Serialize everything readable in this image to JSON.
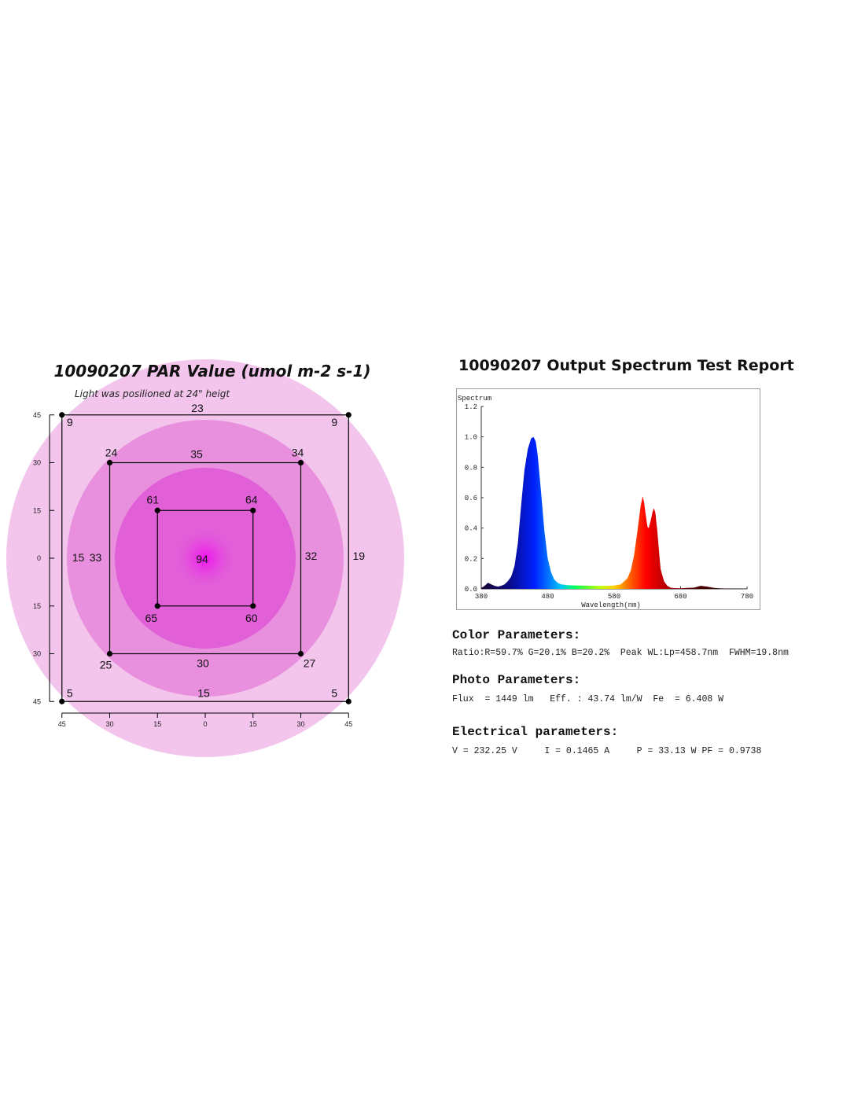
{
  "par": {
    "title": "10090207 PAR Value (umol m-2 s-1)",
    "subtitle": "Light was posilioned at 24\" heigt",
    "colors": {
      "outer": "#f3c4ec",
      "middle": "#e890de",
      "inner": "#e160d8",
      "center": "#f010f0"
    }
  },
  "chart_data": [
    {
      "type": "heatmap",
      "title": "10090207 PAR Value (umol m-2 s-1)",
      "subtitle": "Light was posilioned at 24\" heigt",
      "x_ticks": [
        "45",
        "30",
        "15",
        "0",
        "15",
        "30",
        "45"
      ],
      "y_ticks": [
        "45",
        "30",
        "15",
        "0",
        "15",
        "30",
        "45"
      ],
      "points": [
        {
          "x": -45,
          "y": 45,
          "value": 9
        },
        {
          "x": 0,
          "y": 45,
          "value": 23
        },
        {
          "x": 45,
          "y": 45,
          "value": 9
        },
        {
          "x": -30,
          "y": 30,
          "value": 24
        },
        {
          "x": 0,
          "y": 30,
          "value": 35
        },
        {
          "x": 30,
          "y": 30,
          "value": 34
        },
        {
          "x": -15,
          "y": 15,
          "value": 61
        },
        {
          "x": 15,
          "y": 15,
          "value": 64
        },
        {
          "x": -45,
          "y": 0,
          "value": 15
        },
        {
          "x": -30,
          "y": 0,
          "value": 33
        },
        {
          "x": 0,
          "y": 0,
          "value": 94
        },
        {
          "x": 30,
          "y": 0,
          "value": 32
        },
        {
          "x": 45,
          "y": 0,
          "value": 19
        },
        {
          "x": -15,
          "y": -15,
          "value": 65
        },
        {
          "x": 15,
          "y": -15,
          "value": 60
        },
        {
          "x": -30,
          "y": -30,
          "value": 25
        },
        {
          "x": 0,
          "y": -30,
          "value": 30
        },
        {
          "x": 30,
          "y": -30,
          "value": 27
        },
        {
          "x": -45,
          "y": -45,
          "value": 5
        },
        {
          "x": 0,
          "y": -45,
          "value": 15
        },
        {
          "x": 45,
          "y": -45,
          "value": 5
        }
      ]
    },
    {
      "type": "area",
      "title": "10090207 Output Spectrum Test Report",
      "ylabel": "Spectrum",
      "xlabel": "Wavelength(nm)",
      "xlim": [
        380,
        780
      ],
      "ylim": [
        0,
        1.2
      ],
      "x_ticks": [
        380,
        480,
        580,
        680,
        780
      ],
      "y_ticks": [
        "0.0",
        "0.2",
        "0.4",
        "0.6",
        "0.8",
        "1.0",
        "1.2"
      ],
      "grid": false,
      "series": [
        {
          "x": [
            380,
            385,
            390,
            395,
            400,
            405,
            410,
            415,
            420,
            425,
            430,
            435,
            440,
            445,
            450,
            455,
            458.7,
            462,
            465,
            470,
            475,
            480,
            485,
            490,
            495,
            500,
            510,
            520,
            530,
            540,
            550,
            560,
            570,
            580,
            590,
            600,
            605,
            610,
            615,
            620,
            623,
            625,
            628,
            630,
            632,
            635,
            638,
            640,
            642,
            645,
            648,
            650,
            655,
            660,
            665,
            670,
            680,
            690,
            700,
            710,
            720,
            730,
            740,
            750,
            760,
            770,
            780
          ],
          "y": [
            0.005,
            0.02,
            0.04,
            0.03,
            0.02,
            0.015,
            0.02,
            0.03,
            0.05,
            0.08,
            0.15,
            0.3,
            0.55,
            0.78,
            0.92,
            0.99,
            1.0,
            0.97,
            0.88,
            0.64,
            0.38,
            0.2,
            0.11,
            0.06,
            0.04,
            0.03,
            0.025,
            0.023,
            0.022,
            0.021,
            0.02,
            0.02,
            0.02,
            0.022,
            0.03,
            0.07,
            0.12,
            0.22,
            0.38,
            0.55,
            0.61,
            0.57,
            0.47,
            0.41,
            0.4,
            0.45,
            0.51,
            0.53,
            0.5,
            0.38,
            0.22,
            0.13,
            0.05,
            0.02,
            0.008,
            0.005,
            0.004,
            0.006,
            0.008,
            0.02,
            0.015,
            0.006,
            0.003,
            0.002,
            0.001,
            0.001,
            0.0
          ]
        }
      ]
    }
  ],
  "parameters": {
    "color_head": "Color Parameters:",
    "color_line": "Ratio:R=59.7% G=20.1% B=20.2%  Peak WL:Lp=458.7nm  FWHM=19.8nm",
    "photo_head": "Photo Parameters:",
    "photo_line": "Flux  = 1449 lm   Eff. : 43.74 lm/W  Fe  = 6.408 W",
    "elec_head": "Electrical parameters:",
    "elec_line": "V = 232.25 V     I = 0.1465 A     P = 33.13 W PF = 0.9738"
  }
}
